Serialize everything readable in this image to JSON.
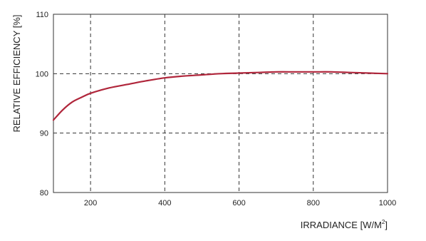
{
  "chart_data": {
    "type": "line",
    "title": "",
    "xlabel": "IRRADIANCE [W/M",
    "xlabel_sup": "2",
    "xlabel_suffix": "]",
    "ylabel": "RELATIVE EFFICIENCY [%]",
    "xlim": [
      100,
      1000
    ],
    "ylim": [
      80,
      110
    ],
    "x_ticks": [
      200,
      400,
      600,
      800,
      1000
    ],
    "y_ticks": [
      80,
      90,
      100,
      110
    ],
    "x_tick_labels": [
      "200",
      "400",
      "600",
      "800",
      "1000"
    ],
    "y_tick_labels": [
      "80",
      "90",
      "100",
      "110"
    ],
    "grid": true,
    "series": [
      {
        "color": "#b0263b",
        "x": [
          100,
          125,
          150,
          175,
          200,
          250,
          300,
          350,
          400,
          450,
          500,
          550,
          600,
          650,
          700,
          750,
          800,
          850,
          900,
          950,
          1000
        ],
        "y": [
          92.2,
          93.9,
          95.2,
          96.0,
          96.7,
          97.6,
          98.2,
          98.8,
          99.3,
          99.6,
          99.8,
          100.0,
          100.1,
          100.2,
          100.3,
          100.3,
          100.3,
          100.3,
          100.2,
          100.1,
          100.0
        ]
      }
    ]
  }
}
